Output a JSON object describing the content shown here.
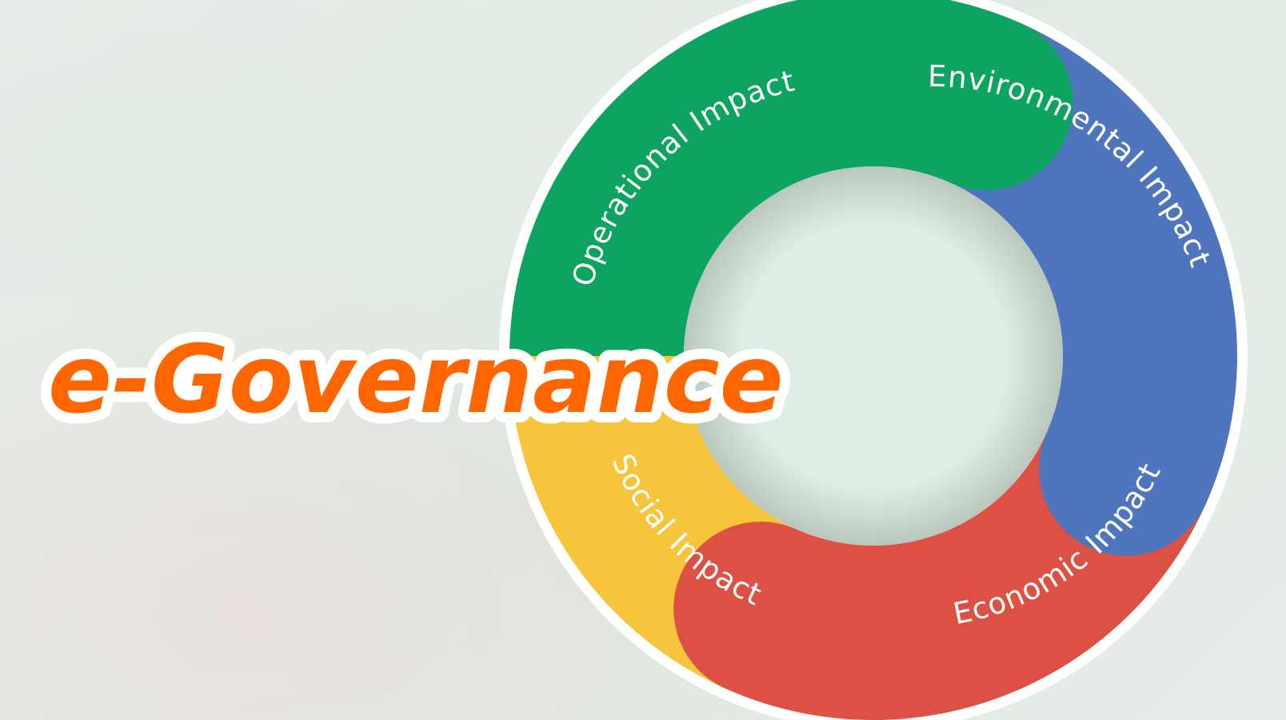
{
  "title": "e-Governance",
  "segments": [
    {
      "key": "operational",
      "label": "Operational Impact",
      "color": "#0da462"
    },
    {
      "key": "environmental",
      "label": "Environmental Impact",
      "color": "#4f76bd"
    },
    {
      "key": "economic",
      "label": "Economic Impact",
      "color": "#dd5145"
    },
    {
      "key": "social",
      "label": "Social Impact",
      "color": "#f6c53c"
    }
  ],
  "colors": {
    "title_fill": "#ff6600",
    "title_outline": "#ffffff",
    "ring_outline": "#ffffff",
    "center": "#ddebe0"
  }
}
